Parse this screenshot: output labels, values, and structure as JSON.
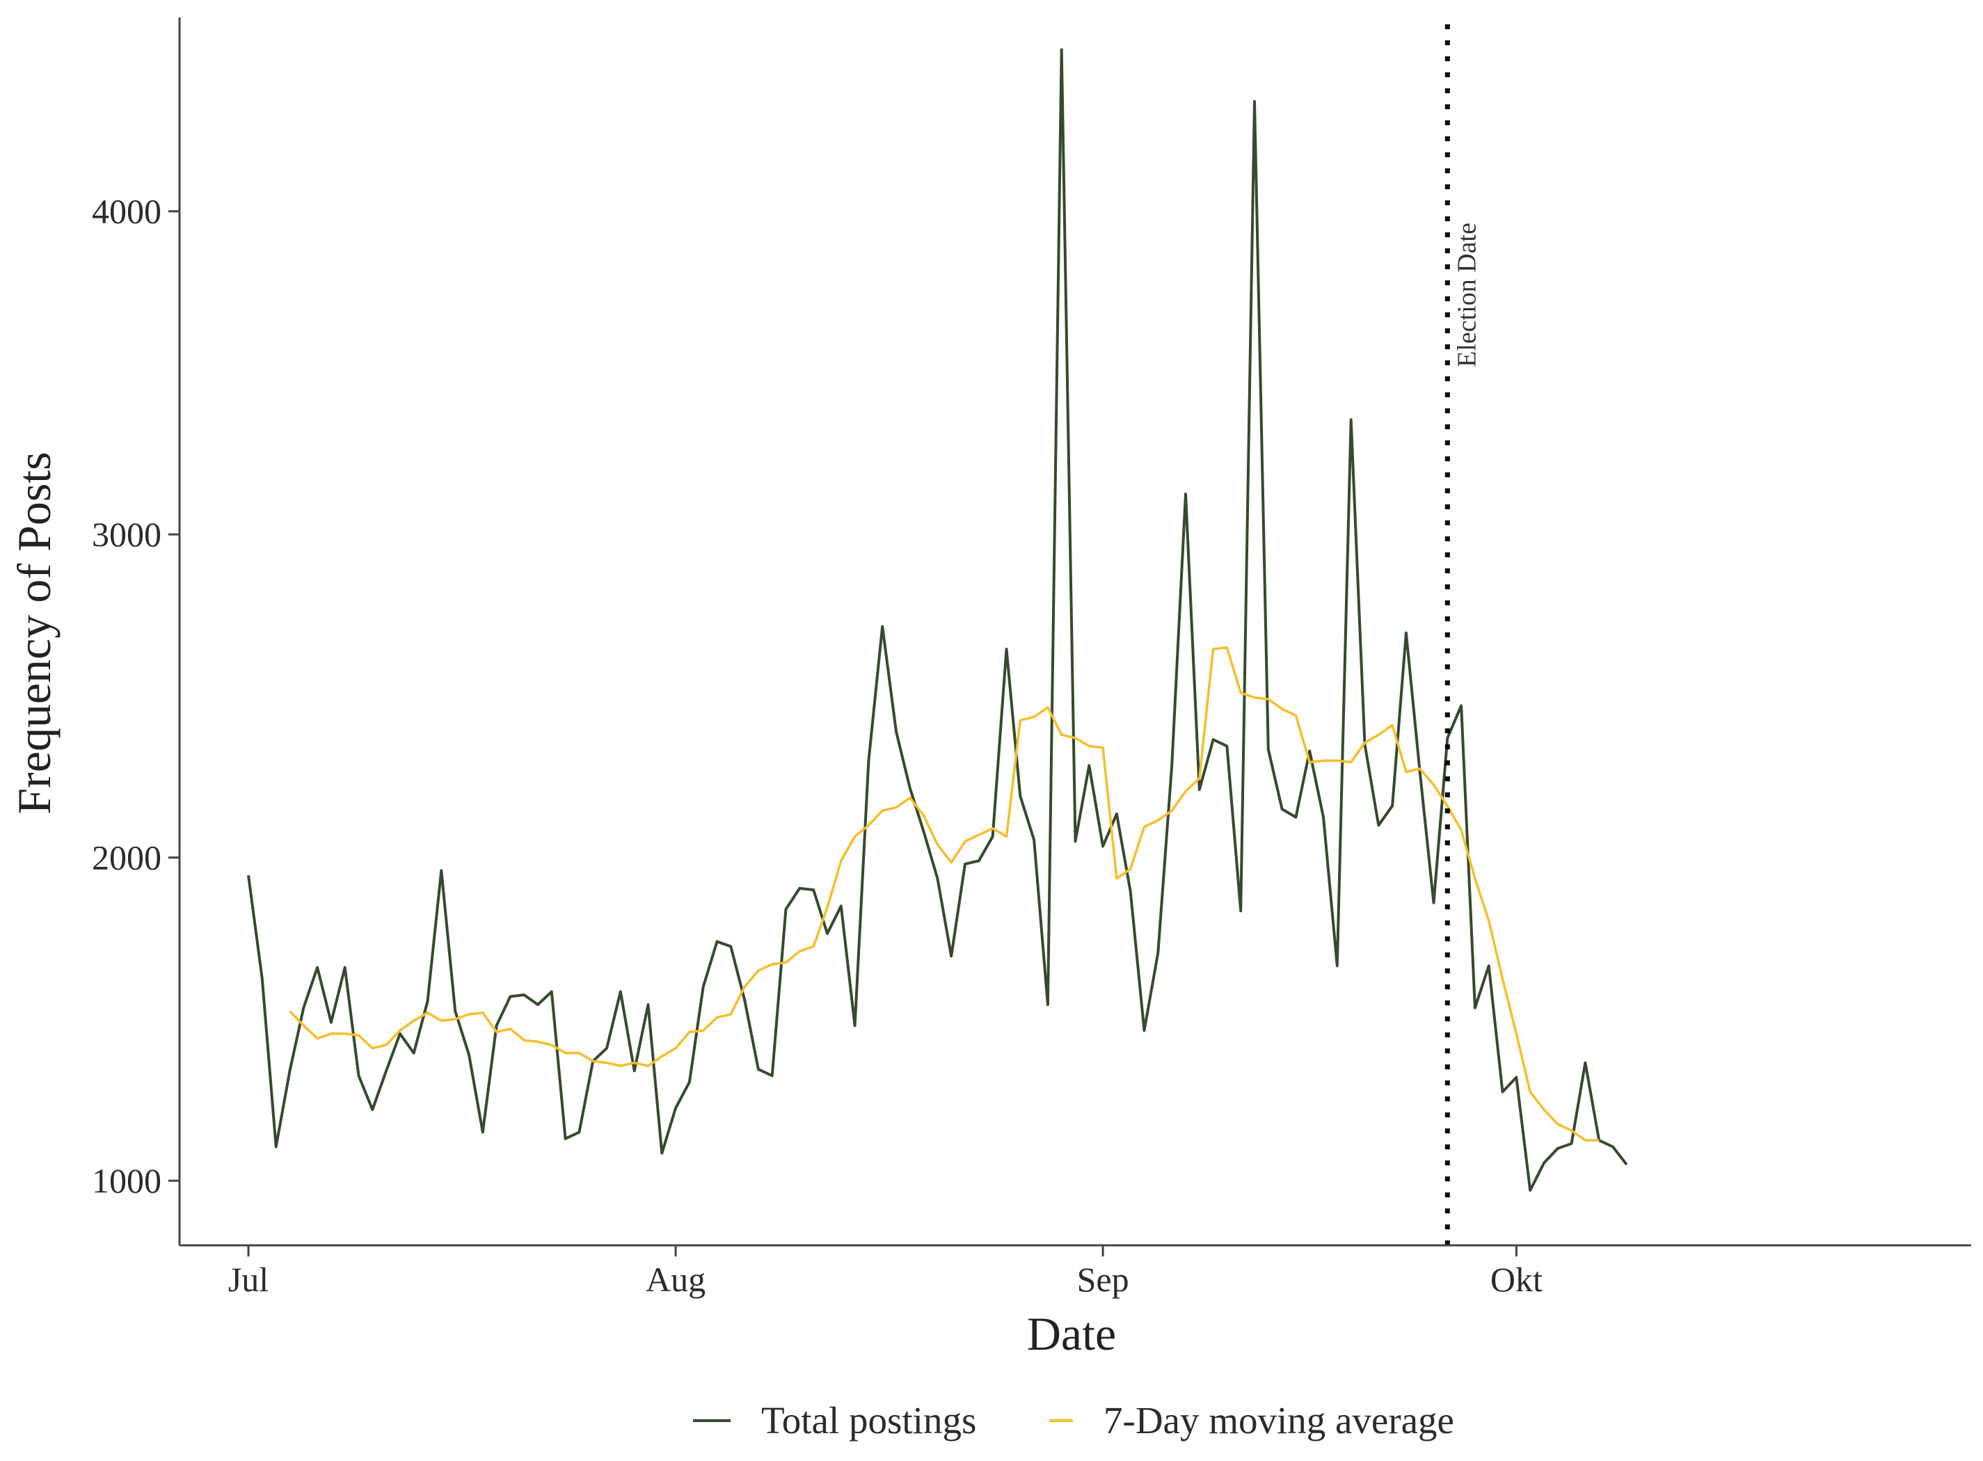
{
  "chart_data": {
    "type": "line",
    "title": "",
    "xlabel": "Date",
    "ylabel": "Frequency of Posts",
    "x_start": "Jul 1",
    "x_range_days": [
      -5,
      125
    ],
    "y_range": [
      800,
      4600
    ],
    "x_ticks": [
      {
        "label": "Jul",
        "day": 0
      },
      {
        "label": "Aug",
        "day": 31
      },
      {
        "label": "Sep",
        "day": 62
      },
      {
        "label": "Okt",
        "day": 92
      }
    ],
    "y_ticks": [
      {
        "label": "1000",
        "value": 1000
      },
      {
        "label": "2000",
        "value": 2000
      },
      {
        "label": "3000",
        "value": 3000
      },
      {
        "label": "4000",
        "value": 4000
      }
    ],
    "series": [
      {
        "name": "Total postings",
        "color": "#364a2e",
        "start_day": 0,
        "values": [
          1945,
          1625,
          1105,
          1340,
          1535,
          1660,
          1490,
          1660,
          1325,
          1220,
          1340,
          1455,
          1395,
          1555,
          1960,
          1525,
          1390,
          1150,
          1480,
          1570,
          1575,
          1545,
          1585,
          1130,
          1150,
          1370,
          1410,
          1585,
          1340,
          1545,
          1085,
          1225,
          1305,
          1600,
          1740,
          1725,
          1560,
          1345,
          1325,
          1840,
          1905,
          1900,
          1765,
          1850,
          1480,
          2300,
          2715,
          2390,
          2215,
          2080,
          1935,
          1695,
          1980,
          1990,
          2065,
          2645,
          2190,
          2055,
          1545,
          4500,
          2050,
          2285,
          2035,
          2135,
          1895,
          1465,
          1705,
          2285,
          3125,
          2210,
          2365,
          2345,
          1835,
          4340,
          2335,
          2150,
          2125,
          2330,
          2125,
          1665,
          3355,
          2350,
          2100,
          2160,
          2695,
          2265,
          1860,
          2370,
          2470,
          1535,
          1665,
          1275,
          1320,
          970,
          1055,
          1100,
          1115,
          1365,
          1125,
          1105,
          1050
        ]
      },
      {
        "name": "7-Day moving average",
        "color": "#f7be2b",
        "start_day": 3,
        "values": [
          1525,
          1480,
          1440,
          1455,
          1455,
          1450,
          1410,
          1420,
          1465,
          1495,
          1520,
          1495,
          1500,
          1515,
          1520,
          1460,
          1470,
          1435,
          1430,
          1420,
          1395,
          1395,
          1370,
          1365,
          1355,
          1365,
          1355,
          1385,
          1410,
          1460,
          1465,
          1505,
          1515,
          1600,
          1650,
          1670,
          1675,
          1710,
          1725,
          1845,
          1990,
          2065,
          2100,
          2145,
          2155,
          2185,
          2130,
          2040,
          1985,
          2050,
          2070,
          2090,
          2065,
          2425,
          2435,
          2465,
          2380,
          2370,
          2345,
          2340,
          1935,
          1965,
          2095,
          2115,
          2145,
          2205,
          2245,
          2645,
          2650,
          2510,
          2495,
          2490,
          2460,
          2440,
          2295,
          2300,
          2300,
          2295,
          2355,
          2380,
          2410,
          2265,
          2275,
          2225,
          2160,
          2085,
          1935,
          1805,
          1625,
          1455,
          1275,
          1220,
          1175,
          1155,
          1125,
          1125
        ]
      }
    ],
    "vline": {
      "day": 87,
      "label": "Election Date",
      "color": "#000000"
    },
    "legend_position": "bottom"
  }
}
